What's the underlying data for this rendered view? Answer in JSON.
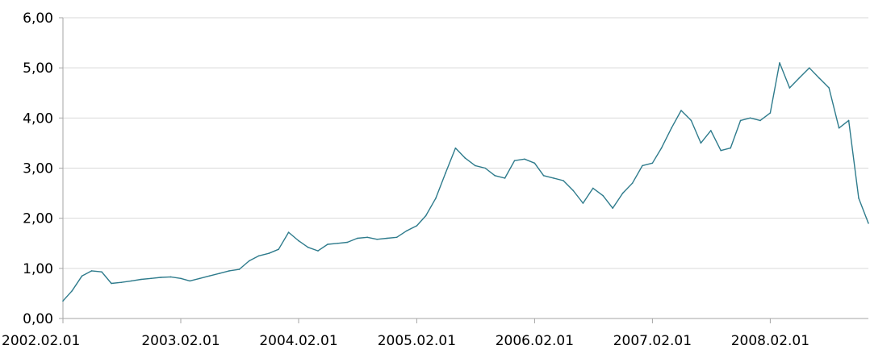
{
  "chart_data": {
    "type": "line",
    "title": "",
    "xlabel": "",
    "ylabel": "",
    "ylim": [
      0,
      6
    ],
    "xlim": [
      "2002.02.01",
      "2008.12.01"
    ],
    "grid": true,
    "line_color": "#2E7B8C",
    "y_ticks": [
      "0,00",
      "1,00",
      "2,00",
      "3,00",
      "4,00",
      "5,00",
      "6,00"
    ],
    "x_ticks": [
      "2002.02.01",
      "2003.02.01",
      "2004.02.01",
      "2005.02.01",
      "2006.02.01",
      "2007.02.01",
      "2008.02.01"
    ],
    "series": [
      {
        "x": [
          "2002.02.01",
          "2002.03.01",
          "2002.04.01",
          "2002.05.01",
          "2002.06.01",
          "2002.07.01",
          "2002.08.01",
          "2002.09.01",
          "2002.10.01",
          "2002.11.01",
          "2002.12.01",
          "2003.01.01",
          "2003.02.01",
          "2003.03.01",
          "2003.04.01",
          "2003.05.01",
          "2003.06.01",
          "2003.07.01",
          "2003.08.01",
          "2003.09.01",
          "2003.10.01",
          "2003.11.01",
          "2003.12.01",
          "2004.01.01",
          "2004.02.01",
          "2004.03.01",
          "2004.04.01",
          "2004.05.01",
          "2004.06.01",
          "2004.07.01",
          "2004.08.01",
          "2004.09.01",
          "2004.10.01",
          "2004.11.01",
          "2004.12.01",
          "2005.01.01",
          "2005.02.01",
          "2005.03.01",
          "2005.04.01",
          "2005.05.01",
          "2005.06.01",
          "2005.07.01",
          "2005.08.01",
          "2005.09.01",
          "2005.10.01",
          "2005.11.01",
          "2005.12.01",
          "2006.01.01",
          "2006.02.01",
          "2006.03.01",
          "2006.04.01",
          "2006.05.01",
          "2006.06.01",
          "2006.07.01",
          "2006.08.01",
          "2006.09.01",
          "2006.10.01",
          "2006.11.01",
          "2006.12.01",
          "2007.01.01",
          "2007.02.01",
          "2007.03.01",
          "2007.04.01",
          "2007.05.01",
          "2007.06.01",
          "2007.07.01",
          "2007.08.01",
          "2007.09.01",
          "2007.10.01",
          "2007.11.01",
          "2007.12.01",
          "2008.01.01",
          "2008.02.01",
          "2008.03.01",
          "2008.04.01",
          "2008.05.01",
          "2008.06.01",
          "2008.07.01",
          "2008.08.01",
          "2008.09.01",
          "2008.10.01",
          "2008.11.01",
          "2008.12.01"
        ],
        "values": [
          0.35,
          0.55,
          0.85,
          0.95,
          0.93,
          0.7,
          0.72,
          0.75,
          0.78,
          0.8,
          0.82,
          0.83,
          0.8,
          0.75,
          0.8,
          0.85,
          0.9,
          0.95,
          0.98,
          1.15,
          1.25,
          1.3,
          1.38,
          1.72,
          1.55,
          1.42,
          1.35,
          1.48,
          1.5,
          1.52,
          1.6,
          1.62,
          1.58,
          1.6,
          1.62,
          1.75,
          1.85,
          2.05,
          2.4,
          2.9,
          3.4,
          3.2,
          3.05,
          3.0,
          2.85,
          2.8,
          3.15,
          3.18,
          3.1,
          2.85,
          2.8,
          2.75,
          2.55,
          2.3,
          2.6,
          2.45,
          2.2,
          2.5,
          2.7,
          3.05,
          3.1,
          3.4,
          3.8,
          4.15,
          3.95,
          3.5,
          3.75,
          3.35,
          3.4,
          3.95,
          4.0,
          3.95,
          4.1,
          5.1,
          4.6,
          4.8,
          5.0,
          4.8,
          4.6,
          3.8,
          3.95,
          2.4,
          1.9
        ]
      }
    ]
  }
}
